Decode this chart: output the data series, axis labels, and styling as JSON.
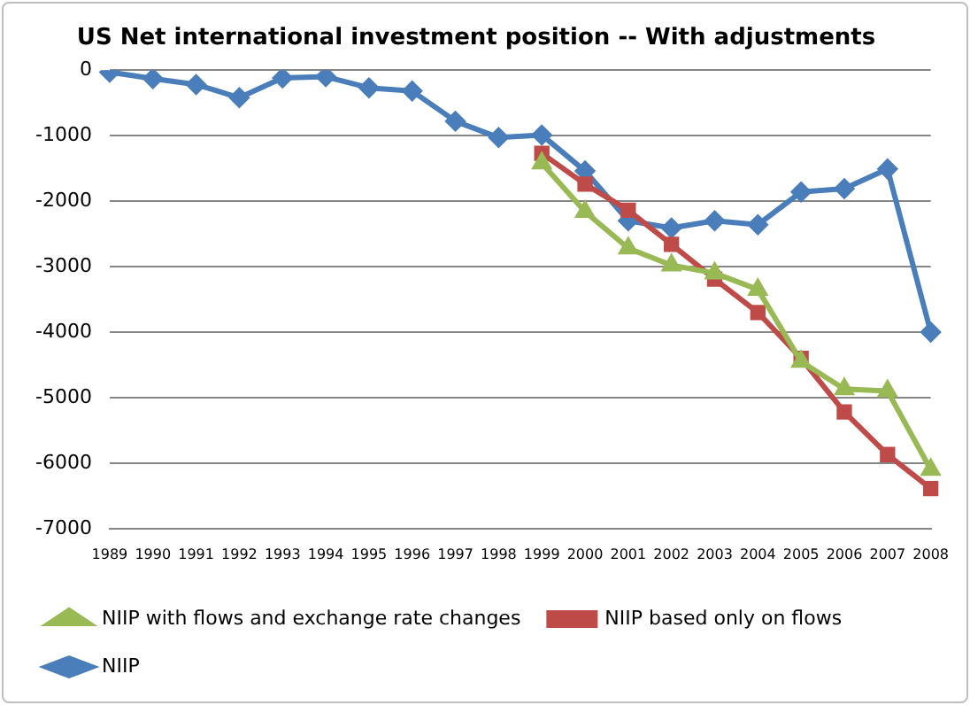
{
  "chart_data": {
    "type": "line",
    "title": "US Net international investment position -- With adjustments",
    "categories": [
      "1989",
      "1990",
      "1991",
      "1992",
      "1993",
      "1994",
      "1995",
      "1996",
      "1997",
      "1998",
      "1999",
      "2000",
      "2001",
      "2002",
      "2003",
      "2004",
      "2005",
      "2006",
      "2007",
      "2008"
    ],
    "series": [
      {
        "name": "NIIP",
        "color": "#4a7ebb",
        "marker": "diamond",
        "values": [
          -30,
          -130,
          -220,
          -420,
          -120,
          -100,
          -270,
          -320,
          -780,
          -1030,
          -990,
          -1540,
          -2300,
          -2410,
          -2300,
          -2360,
          -1860,
          -1810,
          -1510,
          -4000
        ]
      },
      {
        "name": "NIIP based only on flows",
        "color": "#be4b48",
        "marker": "square",
        "values": [
          null,
          null,
          null,
          null,
          null,
          null,
          null,
          null,
          null,
          null,
          -1270,
          -1740,
          -2140,
          -2660,
          -3190,
          -3700,
          -4400,
          -5220,
          -5870,
          -6390
        ]
      },
      {
        "name": "NIIP with flows and exchange rate changes",
        "color": "#98b954",
        "marker": "triangle",
        "values": [
          null,
          null,
          null,
          null,
          null,
          null,
          null,
          null,
          null,
          null,
          -1420,
          -2160,
          -2720,
          -2980,
          -3100,
          -3350,
          -4450,
          -4870,
          -4900,
          -6100
        ]
      }
    ],
    "ylim": [
      -7000,
      0
    ],
    "yticks": [
      -7000,
      -6000,
      -5000,
      -4000,
      -3000,
      -2000,
      -1000,
      0
    ],
    "grid": "y",
    "legend": "bottom",
    "line_style": "solid"
  }
}
